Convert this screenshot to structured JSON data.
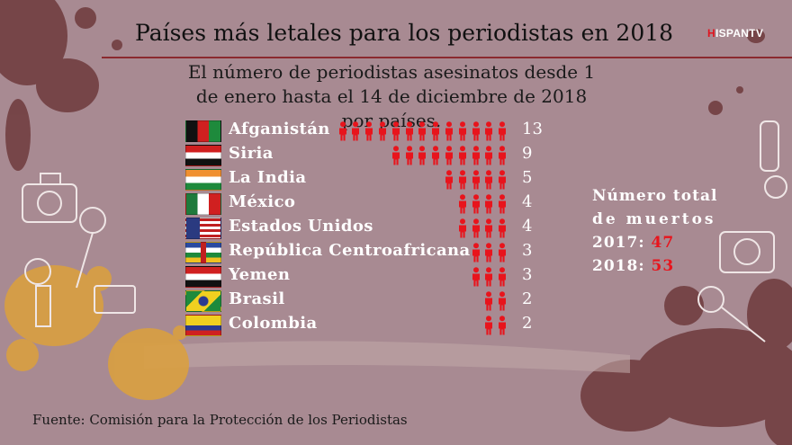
{
  "chart_data": {
    "type": "pictogram-bar",
    "title": "Países más letales para los periodistas en 2018",
    "subtitle": "El número de periodistas asesinatos desde 1 de enero hasta el 14 de diciembre de 2018 por países.",
    "categories": [
      "Afganistán",
      "Siria",
      "La India",
      "México",
      "Estados Unidos",
      "República Centroafricana",
      "Yemen",
      "Brasil",
      "Colombia"
    ],
    "values": [
      13,
      9,
      5,
      4,
      4,
      3,
      3,
      2,
      2
    ],
    "unit_icon": "person-icon"
  },
  "logo": {
    "h": "H",
    "rest": "ISPANTV"
  },
  "totals": {
    "label_line1": "Número total",
    "label_line2": "de muertos",
    "rows": [
      {
        "year": "2017:",
        "value": "47"
      },
      {
        "year": "2018:",
        "value": "53"
      }
    ]
  },
  "source": "Fuente: Comisión para la Protección de los Periodistas",
  "colors": {
    "accent_red": "#e8141c",
    "background": "#a88a92",
    "splash_orange": "#d9a040"
  }
}
